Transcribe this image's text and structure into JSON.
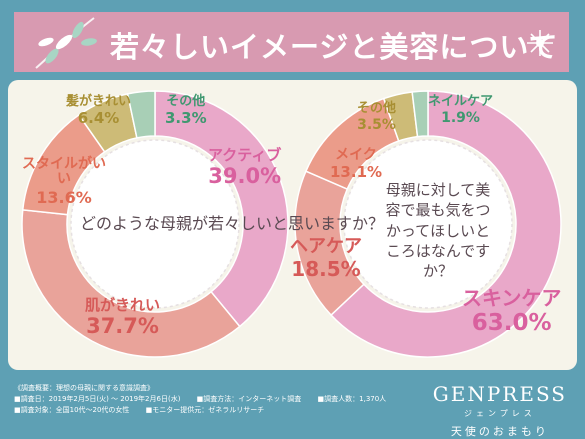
{
  "header": {
    "title": "若々しいイメージと美容について"
  },
  "chart_data": [
    {
      "type": "pie",
      "question": "どのような母親が若々しいと思いますか？",
      "slices": [
        {
          "label": "アクティブ",
          "value": 39.0,
          "color": "#e9a8c9",
          "label_color": "#d9609e"
        },
        {
          "label": "肌がきれい",
          "value": 37.7,
          "color": "#e9a39a",
          "label_color": "#d65a58"
        },
        {
          "label": "スタイルがいい",
          "value": 13.6,
          "color": "#eb9c8a",
          "label_color": "#e06a52"
        },
        {
          "label": "髪がきれい",
          "value": 6.4,
          "color": "#cdbb77",
          "label_color": "#a88f33"
        },
        {
          "label": "その他",
          "value": 3.3,
          "color": "#a8cfb6",
          "label_color": "#3f9870"
        }
      ]
    },
    {
      "type": "pie",
      "question": "母親に対して美容で最も気をつかってほしいところはなんですか？",
      "slices": [
        {
          "label": "スキンケア",
          "value": 63.0,
          "color": "#e9a8c9",
          "label_color": "#d9609e"
        },
        {
          "label": "ヘアケア",
          "value": 18.5,
          "color": "#e9a39a",
          "label_color": "#d65a58"
        },
        {
          "label": "メイク",
          "value": 13.1,
          "color": "#eb9c8a",
          "label_color": "#e06a52"
        },
        {
          "label": "その他",
          "value": 3.5,
          "color": "#cdbb77",
          "label_color": "#a88f33"
        },
        {
          "label": "ネイルケア",
          "value": 1.9,
          "color": "#a8cfb6",
          "label_color": "#3f9870"
        }
      ]
    }
  ],
  "footer": {
    "heading": "《調査概要：理想の母親に関する意識調査》",
    "period": "■調査日：2019年2月5日(火) ～ 2019年2月6日(水)",
    "method": "■調査方法：インターネット調査",
    "count": "■調査人数：1,370人",
    "target": "■調査対象：全国10代～20代の女性",
    "provider": "■モニター提供元：ゼネラルリサーチ"
  },
  "brand": {
    "logo": "GENPRESS",
    "kana": "ジェンプレス",
    "tagline": "天使のおまもり"
  }
}
